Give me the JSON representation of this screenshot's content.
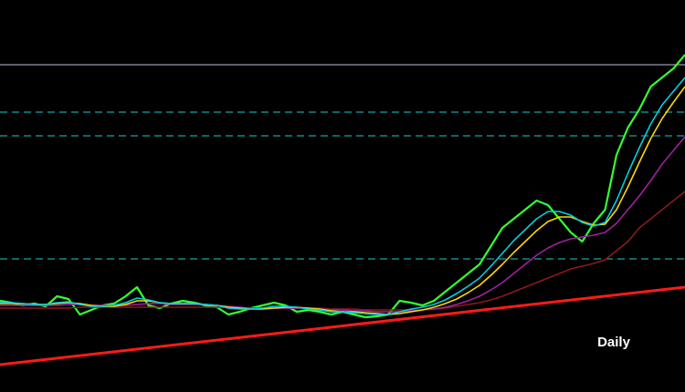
{
  "chart_data": {
    "type": "line",
    "label": "Daily",
    "xlim": [
      0,
      60
    ],
    "ylim": [
      0,
      430
    ],
    "x": [
      0,
      1,
      2,
      3,
      4,
      5,
      6,
      7,
      8,
      9,
      10,
      11,
      12,
      13,
      14,
      15,
      16,
      17,
      18,
      19,
      20,
      21,
      22,
      23,
      24,
      25,
      26,
      27,
      28,
      29,
      30,
      31,
      32,
      33,
      34,
      35,
      36,
      37,
      38,
      39,
      40,
      41,
      42,
      43,
      44,
      45,
      46,
      47,
      48,
      49,
      50,
      51,
      52,
      53,
      54,
      55,
      56,
      57,
      58,
      59,
      60
    ],
    "series": [
      {
        "color": "#33ff33",
        "values": [
          100,
          98,
          95,
          97,
          94,
          105,
          102,
          85,
          90,
          95,
          97,
          105,
          115,
          95,
          92,
          97,
          100,
          98,
          95,
          93,
          85,
          88,
          92,
          95,
          98,
          95,
          88,
          90,
          88,
          85,
          88,
          85,
          82,
          83,
          85,
          100,
          98,
          95,
          100,
          110,
          120,
          130,
          140,
          160,
          180,
          190,
          200,
          210,
          205,
          190,
          175,
          165,
          185,
          200,
          260,
          290,
          310,
          335,
          345,
          355,
          370
        ]
      },
      {
        "color": "#8b1a1a",
        "values": [
          92,
          92,
          92,
          92,
          92,
          92,
          92,
          93,
          93,
          93,
          93,
          93,
          93,
          93,
          93,
          93,
          93,
          93,
          93,
          93,
          93,
          92,
          92,
          92,
          92,
          92,
          92,
          92,
          92,
          91,
          91,
          91,
          90,
          90,
          90,
          90,
          90,
          90,
          91,
          92,
          94,
          96,
          98,
          101,
          105,
          110,
          115,
          120,
          125,
          130,
          135,
          138,
          141,
          145,
          155,
          165,
          180,
          190,
          200,
          210,
          220
        ]
      },
      {
        "color": "#a020a0",
        "values": [
          95,
          95,
          95,
          95,
          95,
          95,
          96,
          96,
          95,
          95,
          95,
          95,
          96,
          97,
          97,
          96,
          96,
          96,
          96,
          95,
          94,
          93,
          92,
          92,
          92,
          92,
          92,
          92,
          91,
          90,
          90,
          89,
          89,
          88,
          88,
          88,
          89,
          90,
          91,
          93,
          96,
          100,
          105,
          112,
          120,
          130,
          140,
          150,
          158,
          164,
          168,
          170,
          172,
          175,
          185,
          200,
          215,
          232,
          250,
          265,
          280
        ]
      },
      {
        "color": "#ffd700",
        "values": [
          97,
          97,
          97,
          96,
          96,
          97,
          98,
          97,
          95,
          94,
          94,
          96,
          100,
          100,
          98,
          97,
          97,
          97,
          96,
          95,
          93,
          92,
          91,
          91,
          92,
          93,
          93,
          92,
          91,
          89,
          88,
          88,
          87,
          86,
          85,
          86,
          88,
          90,
          93,
          97,
          102,
          109,
          117,
          128,
          140,
          153,
          165,
          177,
          187,
          192,
          192,
          187,
          183,
          184,
          200,
          225,
          252,
          278,
          300,
          318,
          335
        ]
      },
      {
        "color": "#00d0e0",
        "values": [
          98,
          98,
          97,
          96,
          96,
          98,
          99,
          96,
          94,
          94,
          95,
          98,
          103,
          101,
          98,
          97,
          97,
          97,
          96,
          95,
          92,
          91,
          91,
          92,
          94,
          94,
          93,
          91,
          90,
          88,
          88,
          87,
          86,
          85,
          85,
          88,
          91,
          93,
          96,
          101,
          108,
          116,
          125,
          138,
          152,
          166,
          178,
          190,
          198,
          198,
          194,
          186,
          182,
          186,
          210,
          240,
          268,
          294,
          315,
          330,
          345
        ]
      }
    ],
    "levels": [
      {
        "value": 359,
        "color": "#9a9aa8",
        "dashed": false
      },
      {
        "value": 307,
        "color": "#1aa3a3",
        "dashed": true
      },
      {
        "value": 281,
        "color": "#1aa3a3",
        "dashed": true
      },
      {
        "value": 146,
        "color": "#1aa3a3",
        "dashed": true
      }
    ],
    "trendline": {
      "x": [
        0,
        60
      ],
      "values": [
        30,
        115
      ],
      "color": "#ff1a1a"
    }
  }
}
